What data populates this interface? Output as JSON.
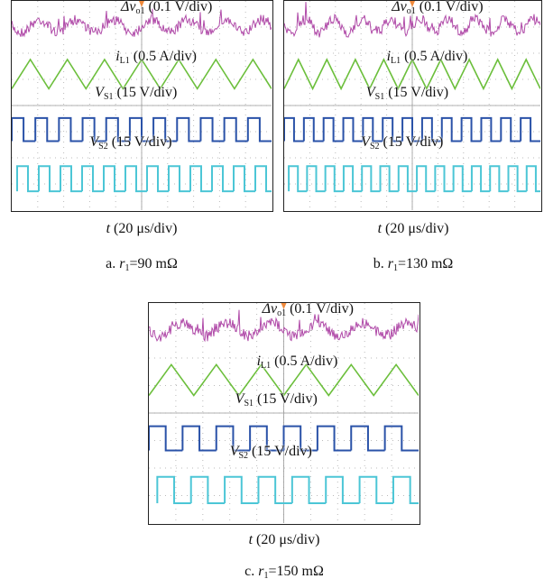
{
  "panels": [
    {
      "channels": [
        {
          "symbol": "Δv",
          "subscript": "o1",
          "scale": "(0.1 V/div)"
        },
        {
          "symbol": "i",
          "subscript": "L1",
          "scale": "(0.5 A/div)"
        },
        {
          "symbol": "V",
          "subscript": "S1",
          "scale": "(15 V/div)"
        },
        {
          "symbol": "V",
          "subscript": "S2",
          "scale": "(15 V/div)"
        }
      ],
      "x_axis": {
        "symbol": "t",
        "scale": "(20 μs/div)"
      },
      "caption": {
        "letter": "a.",
        "symbol": "r",
        "subscript": "1",
        "value": "=90 mΩ"
      }
    },
    {
      "channels": [
        {
          "symbol": "Δv",
          "subscript": "o1",
          "scale": "(0.1 V/div)"
        },
        {
          "symbol": "i",
          "subscript": "L1",
          "scale": "(0.5 A/div)"
        },
        {
          "symbol": "V",
          "subscript": "S1",
          "scale": "(15 V/div)"
        },
        {
          "symbol": "V",
          "subscript": "S2",
          "scale": "(15 V/div)"
        }
      ],
      "x_axis": {
        "symbol": "t",
        "scale": "(20 μs/div)"
      },
      "caption": {
        "letter": "b.",
        "symbol": "r",
        "subscript": "1",
        "value": "=130 mΩ"
      }
    },
    {
      "channels": [
        {
          "symbol": "Δv",
          "subscript": "o1",
          "scale": "(0.1 V/div)"
        },
        {
          "symbol": "i",
          "subscript": "L1",
          "scale": "(0.5 A/div)"
        },
        {
          "symbol": "V",
          "subscript": "S1",
          "scale": "(15 V/div)"
        },
        {
          "symbol": "V",
          "subscript": "S2",
          "scale": "(15 V/div)"
        }
      ],
      "x_axis": {
        "symbol": "t",
        "scale": "(20 μs/div)"
      },
      "caption": {
        "letter": "c.",
        "symbol": "r",
        "subscript": "1",
        "value": "=150 mΩ"
      }
    }
  ]
}
